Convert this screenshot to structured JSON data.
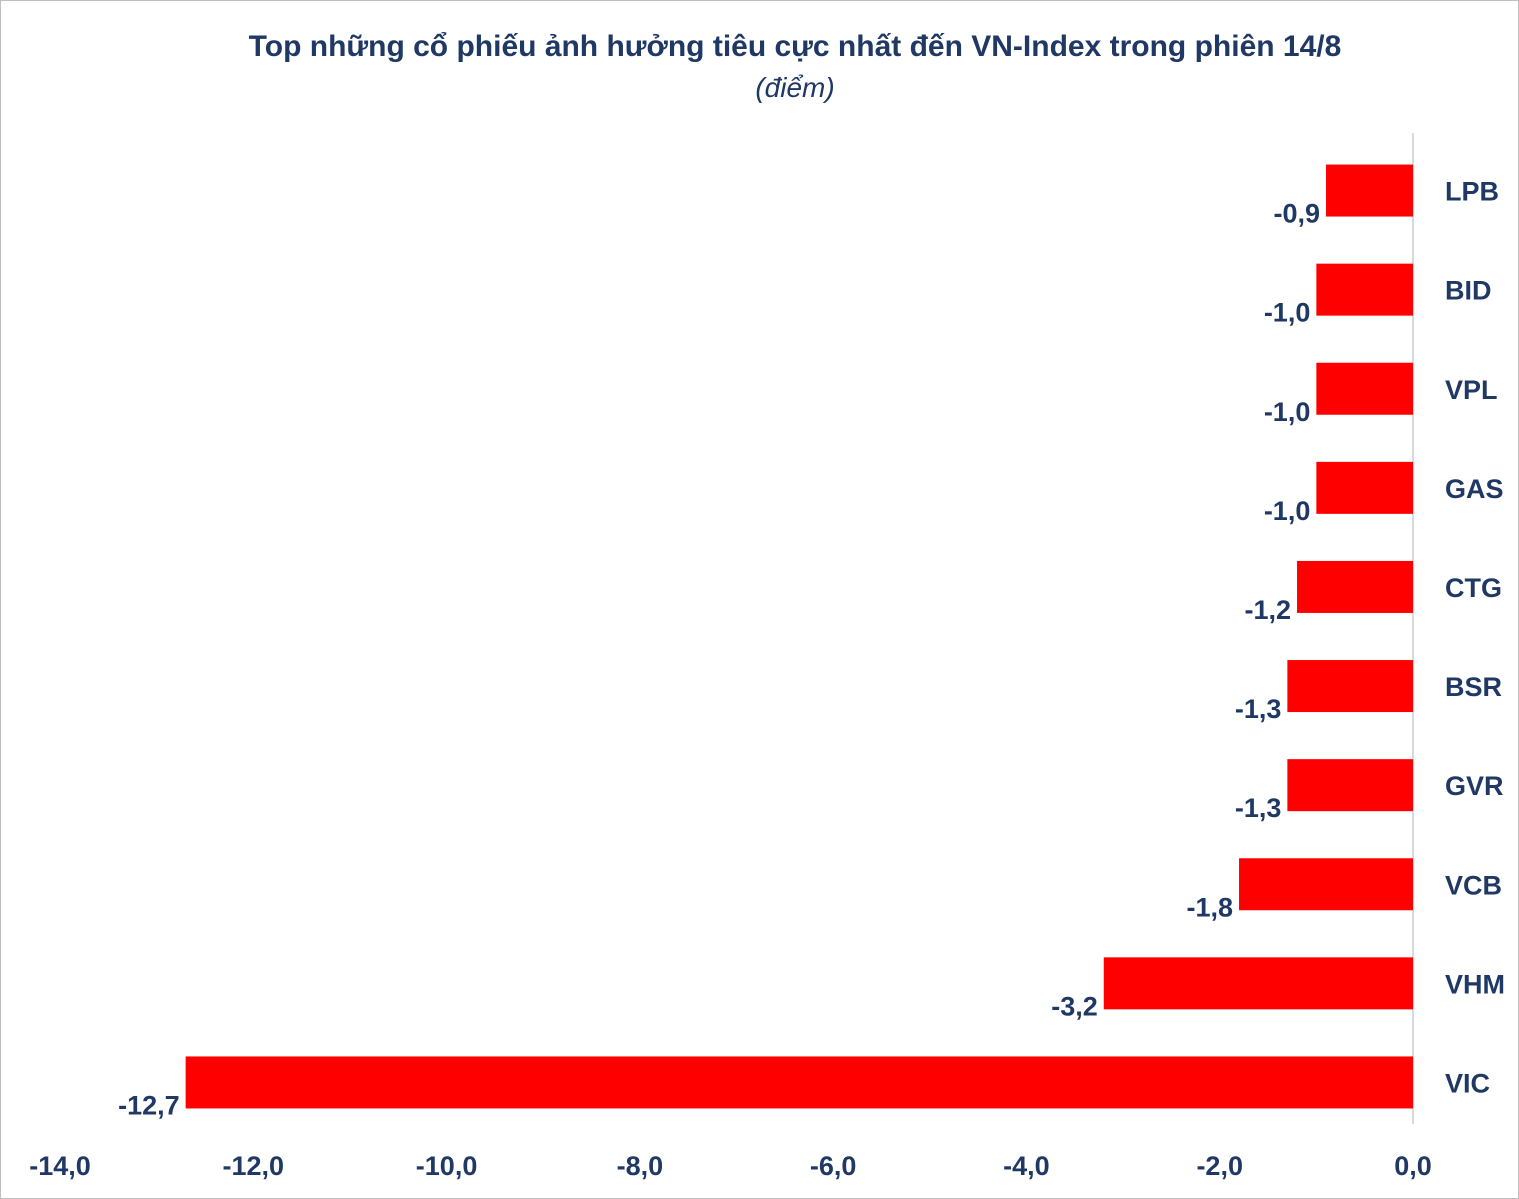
{
  "chart_data": {
    "type": "bar",
    "orientation": "horizontal",
    "title": "Top những cổ phiếu ảnh hưởng tiêu cực nhất đến VN-Index trong phiên 14/8",
    "subtitle": "(điểm)",
    "categories": [
      "LPB",
      "BID",
      "VPL",
      "GAS",
      "CTG",
      "BSR",
      "GVR",
      "VCB",
      "VHM",
      "VIC"
    ],
    "values": [
      -0.9,
      -1.0,
      -1.0,
      -1.0,
      -1.2,
      -1.3,
      -1.3,
      -1.8,
      -3.2,
      -12.7
    ],
    "value_labels": [
      "-0,9",
      "-1,0",
      "-1,0",
      "-1,0",
      "-1,2",
      "-1,3",
      "-1,3",
      "-1,8",
      "-3,2",
      "-12,7"
    ],
    "xlim": [
      -14,
      0
    ],
    "x_ticks": [
      -14,
      -12,
      -10,
      -8,
      -6,
      -4,
      -2,
      0
    ],
    "x_tick_labels": [
      "-14,0",
      "-12,0",
      "-10,0",
      "-8,0",
      "-6,0",
      "-4,0",
      "-2,0",
      "0,0"
    ],
    "bar_color": "#ff0000",
    "text_color": "#1f3864",
    "grid": false,
    "legend": "none"
  }
}
